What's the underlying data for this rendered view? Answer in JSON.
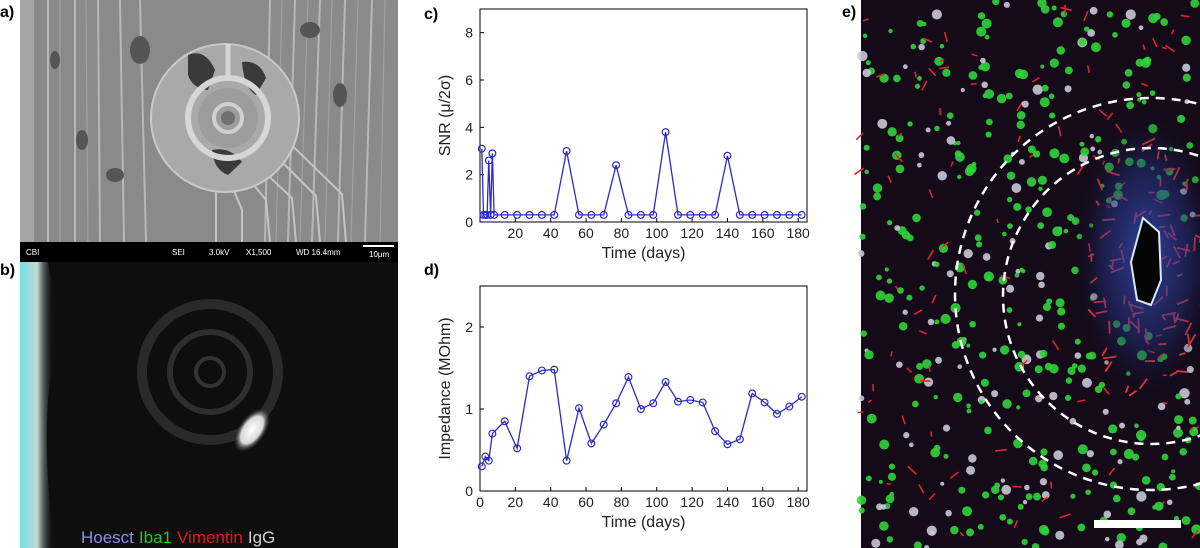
{
  "panels": {
    "a": {
      "letter": "a)",
      "sem_info": {
        "label": "CBI",
        "mode": "SEI",
        "voltage": "3.0kV",
        "magnification": "X1,500",
        "working_distance": "WD 16.4mm",
        "scale": "10μm"
      }
    },
    "b": {
      "letter": "b)",
      "stains": [
        {
          "name": "Hoesct",
          "color": "#8c8cf0"
        },
        {
          "name": "Iba1",
          "color": "#1ec81e"
        },
        {
          "name": "Vimentin",
          "color": "#e61414"
        },
        {
          "name": "IgG",
          "color": "#d2d2d2"
        }
      ]
    },
    "c": {
      "letter": "c)"
    },
    "d": {
      "letter": "d)"
    },
    "e": {
      "letter": "e)"
    }
  },
  "chart_data": [
    {
      "panel": "c",
      "type": "line",
      "xlabel": "Time (days)",
      "ylabel": "SNR (μ/2σ)",
      "xlim": [
        0,
        185
      ],
      "ylim": [
        0,
        9
      ],
      "xticks": [
        20,
        40,
        60,
        80,
        100,
        120,
        140,
        160,
        180
      ],
      "yticks": [
        0,
        2,
        4,
        6,
        8
      ],
      "grid": false,
      "color": "#2b2bc8",
      "x": [
        1,
        2,
        3,
        4,
        5,
        6,
        7,
        8,
        14,
        21,
        28,
        35,
        42,
        49,
        56,
        63,
        70,
        77,
        84,
        91,
        98,
        105,
        112,
        119,
        126,
        133,
        140,
        147,
        154,
        161,
        168,
        175,
        182
      ],
      "y": [
        3.1,
        0.3,
        0.3,
        0.3,
        2.6,
        0.3,
        2.9,
        0.3,
        0.3,
        0.3,
        0.3,
        0.3,
        0.3,
        3.0,
        0.3,
        0.3,
        0.3,
        2.4,
        0.3,
        0.3,
        0.3,
        3.8,
        0.3,
        0.3,
        0.3,
        0.3,
        2.8,
        0.3,
        0.3,
        0.3,
        0.3,
        0.3,
        0.3
      ]
    },
    {
      "panel": "d",
      "type": "line",
      "xlabel": "Time (days)",
      "ylabel": "Impedance (MOhm)",
      "xlim": [
        0,
        185
      ],
      "ylim": [
        0,
        2.5
      ],
      "xticks": [
        0,
        20,
        40,
        60,
        80,
        100,
        120,
        140,
        160,
        180
      ],
      "yticks": [
        0,
        1,
        2
      ],
      "grid": false,
      "color": "#2b2bc8",
      "x": [
        1,
        3,
        5,
        7,
        14,
        21,
        28,
        35,
        42,
        49,
        56,
        63,
        70,
        77,
        84,
        91,
        98,
        105,
        112,
        119,
        126,
        133,
        140,
        147,
        154,
        161,
        168,
        175,
        182
      ],
      "y": [
        0.3,
        0.42,
        0.37,
        0.7,
        0.85,
        0.52,
        1.4,
        1.47,
        1.48,
        0.37,
        1.01,
        0.58,
        0.81,
        1.07,
        1.39,
        1.0,
        1.07,
        1.33,
        1.09,
        1.11,
        1.08,
        0.73,
        0.57,
        0.63,
        1.19,
        1.08,
        0.94,
        1.03,
        1.15
      ]
    }
  ]
}
